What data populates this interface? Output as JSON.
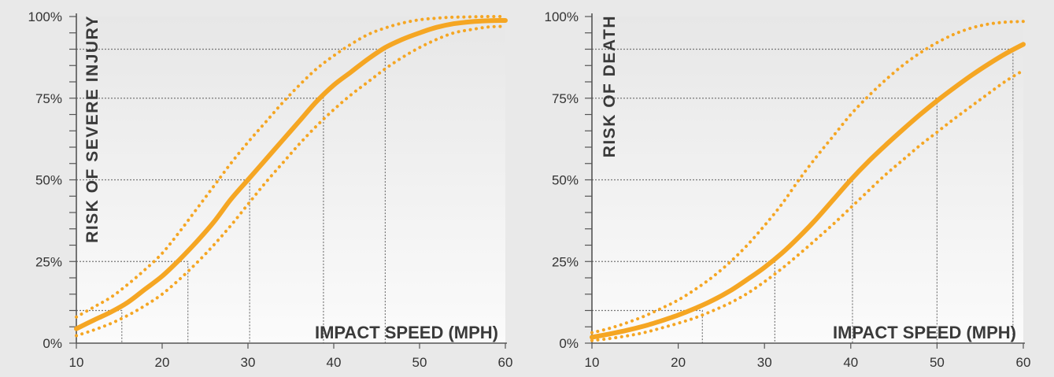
{
  "colors": {
    "curve": "#f5a623",
    "axis": "#555555",
    "guide": "#777777",
    "background": "#e9e9e9"
  },
  "chart_data": [
    {
      "type": "line",
      "title": "",
      "ylabel": "RISK OF SEVERE INJURY",
      "xlabel": "IMPACT SPEED (MPH)",
      "xlim": [
        10,
        60
      ],
      "ylim": [
        0,
        100
      ],
      "x_ticks": [
        "10",
        "20",
        "30",
        "40",
        "50",
        "60"
      ],
      "y_ticks": [
        "0%",
        "25%",
        "50%",
        "75%",
        "100%"
      ],
      "y_minor_step": 5,
      "grid": false,
      "series": [
        {
          "style": "solid",
          "x": [
            10,
            12,
            14,
            16,
            18,
            20,
            22,
            24,
            26,
            28,
            30,
            32,
            34,
            36,
            38,
            40,
            42,
            44,
            46,
            48,
            50,
            52,
            54,
            56,
            58,
            60
          ],
          "y": [
            4.4,
            7,
            9.5,
            12.5,
            16.5,
            20.5,
            25.5,
            31,
            37,
            44,
            50,
            56,
            62,
            68,
            74,
            79,
            83,
            87,
            90.5,
            93,
            95,
            96.7,
            97.8,
            98.4,
            98.7,
            98.8
          ]
        },
        {
          "style": "dotted",
          "x": [
            10,
            12,
            14,
            16,
            18,
            20,
            22,
            24,
            26,
            28,
            30,
            32,
            34,
            36,
            38,
            40,
            42,
            44,
            46,
            48,
            50,
            52,
            54,
            56,
            58,
            60
          ],
          "y": [
            8,
            11,
            14,
            18,
            22.5,
            27.5,
            34,
            41,
            48,
            55,
            61.5,
            67.5,
            73.5,
            79,
            84,
            88,
            91.5,
            94.5,
            96.5,
            98,
            99,
            99.5,
            99.8,
            99.9,
            100,
            100
          ]
        },
        {
          "style": "dotted",
          "x": [
            10,
            12,
            14,
            16,
            18,
            20,
            22,
            24,
            26,
            28,
            30,
            32,
            34,
            36,
            38,
            40,
            42,
            44,
            46,
            48,
            50,
            52,
            54,
            56,
            58,
            60
          ],
          "y": [
            2.3,
            4,
            6,
            8.5,
            11.5,
            15,
            19.5,
            24.5,
            30,
            36,
            42.5,
            49,
            55,
            61,
            66.5,
            71.5,
            76,
            80,
            84,
            87.5,
            90.5,
            93,
            95,
            96,
            96.8,
            97
          ]
        }
      ],
      "guides": [
        {
          "x": 15.3,
          "y": 10
        },
        {
          "x": 23,
          "y": 25
        },
        {
          "x": 30.2,
          "y": 50
        },
        {
          "x": 38.8,
          "y": 75
        },
        {
          "x": 46,
          "y": 90
        }
      ]
    },
    {
      "type": "line",
      "title": "",
      "ylabel": "RISK OF DEATH",
      "xlabel": "IMPACT SPEED (MPH)",
      "xlim": [
        10,
        60
      ],
      "ylim": [
        0,
        100
      ],
      "x_ticks": [
        "10",
        "20",
        "30",
        "40",
        "50",
        "60"
      ],
      "y_ticks": [
        "0%",
        "25%",
        "50%",
        "75%",
        "100%"
      ],
      "y_minor_step": 5,
      "grid": false,
      "series": [
        {
          "style": "solid",
          "x": [
            10,
            12,
            14,
            16,
            18,
            20,
            22,
            24,
            26,
            28,
            30,
            32,
            34,
            36,
            38,
            40,
            42,
            44,
            46,
            48,
            50,
            52,
            54,
            56,
            58,
            60
          ],
          "y": [
            1.8,
            2.8,
            3.9,
            5.2,
            6.8,
            8.6,
            10.7,
            13.1,
            16,
            19.5,
            23.2,
            27.5,
            32.5,
            38,
            44,
            50,
            55.5,
            60.5,
            65.3,
            69.9,
            74.2,
            78.2,
            82,
            85.5,
            88.7,
            91.5
          ]
        },
        {
          "style": "dotted",
          "x": [
            10,
            12,
            14,
            16,
            18,
            20,
            22,
            24,
            26,
            28,
            30,
            32,
            34,
            36,
            38,
            40,
            42,
            44,
            46,
            48,
            50,
            52,
            54,
            56,
            58,
            60
          ],
          "y": [
            3.2,
            4.5,
            6.2,
            8.2,
            10.6,
            13.2,
            16.5,
            20.3,
            24.8,
            30,
            36,
            42.5,
            50,
            57,
            63.5,
            70,
            75.5,
            80.5,
            85,
            88.8,
            92,
            94.6,
            96.5,
            97.7,
            98.3,
            98.5
          ]
        },
        {
          "style": "dotted",
          "x": [
            10,
            12,
            14,
            16,
            18,
            20,
            22,
            24,
            26,
            28,
            30,
            32,
            34,
            36,
            38,
            40,
            42,
            44,
            46,
            48,
            50,
            52,
            54,
            56,
            58,
            60
          ],
          "y": [
            0.8,
            1.4,
            2.2,
            3.2,
            4.6,
            6.1,
            7.8,
            9.9,
            12.3,
            15.2,
            18.8,
            22.8,
            27.2,
            31.8,
            36.5,
            41.5,
            46.5,
            51.5,
            56,
            60.5,
            64.6,
            68.7,
            72.6,
            76.5,
            80.3,
            83.5
          ]
        }
      ],
      "guides": [
        {
          "x": 22.8,
          "y": 10
        },
        {
          "x": 31.2,
          "y": 25
        },
        {
          "x": 40.2,
          "y": 50
        },
        {
          "x": 50,
          "y": 75
        },
        {
          "x": 58.8,
          "y": 90
        }
      ]
    }
  ]
}
